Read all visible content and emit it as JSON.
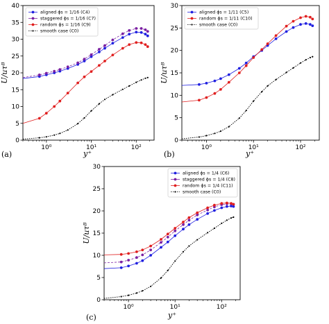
{
  "chart_data": [
    {
      "type": "line",
      "panel_label": "(a)",
      "xlabel": "y⁺",
      "ylabel": "U/uτᴮ",
      "xscale": "log",
      "xlim": [
        0.3,
        250
      ],
      "ylim": [
        0,
        40
      ],
      "xticks": [
        {
          "v": 1,
          "label": "10⁰"
        },
        {
          "v": 10,
          "label": "10¹"
        },
        {
          "v": 100,
          "label": "10²"
        }
      ],
      "yticks": [
        0,
        5,
        10,
        15,
        20,
        25,
        30,
        35,
        40
      ],
      "legend_position": "top-left",
      "series": [
        {
          "name": "aligned ϕs = 1/16 (C4)",
          "color": "#1f1fe0",
          "marker": "circle",
          "x": [
            0.3,
            0.7,
            1.0,
            1.5,
            2.0,
            3.0,
            5.0,
            7.0,
            10,
            15,
            20,
            30,
            50,
            70,
            100,
            130,
            160,
            180
          ],
          "y": [
            18.3,
            18.9,
            19.4,
            20.0,
            20.5,
            21.3,
            22.5,
            23.5,
            24.8,
            26.2,
            27.3,
            28.8,
            30.5,
            31.5,
            32.1,
            32.0,
            31.5,
            31.0
          ]
        },
        {
          "name": "staggered ϕs = 1/16 (C7)",
          "color": "#7a1fa2",
          "marker": "circle",
          "x": [
            0.3,
            0.7,
            1.0,
            1.5,
            2.0,
            3.0,
            5.0,
            7.0,
            10,
            15,
            20,
            30,
            50,
            70,
            100,
            130,
            160,
            180
          ],
          "y": [
            18.6,
            19.4,
            19.9,
            20.5,
            21.0,
            21.8,
            23.0,
            24.1,
            25.4,
            27.0,
            28.1,
            29.8,
            31.6,
            32.6,
            33.2,
            33.2,
            32.8,
            32.3
          ]
        },
        {
          "name": "random ϕs = 1/16 (C9)",
          "color": "#e01f1f",
          "marker": "circle",
          "x": [
            0.3,
            0.7,
            1.0,
            1.5,
            2.0,
            3.0,
            5.0,
            7.0,
            10,
            15,
            20,
            30,
            50,
            70,
            100,
            130,
            160,
            180
          ],
          "y": [
            5.0,
            6.5,
            8.0,
            10.0,
            11.6,
            14.0,
            17.0,
            18.8,
            20.4,
            22.2,
            23.5,
            25.3,
            27.3,
            28.4,
            29.0,
            28.9,
            28.4,
            27.8
          ]
        },
        {
          "name": "smooth case (C0)",
          "color": "#000000",
          "marker": "dot",
          "x": [
            0.3,
            0.7,
            1.0,
            1.5,
            2.0,
            3.0,
            5.0,
            7.0,
            10,
            15,
            20,
            30,
            50,
            70,
            100,
            130,
            160,
            180
          ],
          "y": [
            0.3,
            0.7,
            1.0,
            1.5,
            2.0,
            3.0,
            4.9,
            6.6,
            8.7,
            10.8,
            12.1,
            13.5,
            15.1,
            16.1,
            17.2,
            17.9,
            18.4,
            18.6
          ]
        }
      ]
    },
    {
      "type": "line",
      "panel_label": "(b)",
      "xlabel": "y⁺",
      "ylabel": "U/uτᴮ",
      "xscale": "log",
      "xlim": [
        0.3,
        250
      ],
      "ylim": [
        0,
        30
      ],
      "xticks": [
        {
          "v": 1,
          "label": "10⁰"
        },
        {
          "v": 10,
          "label": "10¹"
        },
        {
          "v": 100,
          "label": "10²"
        }
      ],
      "yticks": [
        0,
        5,
        10,
        15,
        20,
        25,
        30
      ],
      "legend_position": "top-left",
      "series": [
        {
          "name": "aligned ϕs = 1/11 (C5)",
          "color": "#1f1fe0",
          "marker": "circle",
          "x": [
            0.3,
            0.7,
            1.0,
            1.5,
            2.0,
            3.0,
            5.0,
            7.0,
            10,
            15,
            20,
            30,
            50,
            70,
            100,
            130,
            160,
            180
          ],
          "y": [
            12.2,
            12.4,
            12.7,
            13.2,
            13.7,
            14.6,
            16.0,
            17.2,
            18.6,
            20.0,
            21.1,
            22.6,
            24.2,
            25.1,
            25.8,
            26.0,
            25.8,
            25.5
          ]
        },
        {
          "name": "random ϕs = 1/11 (C10)",
          "color": "#e01f1f",
          "marker": "circle",
          "x": [
            0.3,
            0.7,
            1.0,
            1.5,
            2.0,
            3.0,
            5.0,
            7.0,
            10,
            15,
            20,
            30,
            50,
            70,
            100,
            130,
            160,
            180
          ],
          "y": [
            8.5,
            8.9,
            9.5,
            10.4,
            11.3,
            12.9,
            15.0,
            16.6,
            18.4,
            20.2,
            21.5,
            23.3,
            25.4,
            26.5,
            27.3,
            27.6,
            27.4,
            27.0
          ]
        },
        {
          "name": "smooth case (C0)",
          "color": "#000000",
          "marker": "dot",
          "x": [
            0.3,
            0.7,
            1.0,
            1.5,
            2.0,
            3.0,
            5.0,
            7.0,
            10,
            15,
            20,
            30,
            50,
            70,
            100,
            130,
            160,
            180
          ],
          "y": [
            0.3,
            0.7,
            1.0,
            1.5,
            2.0,
            3.0,
            4.9,
            6.6,
            8.7,
            10.8,
            12.1,
            13.5,
            15.1,
            16.1,
            17.2,
            17.9,
            18.4,
            18.6
          ]
        }
      ]
    },
    {
      "type": "line",
      "panel_label": "(c)",
      "xlabel": "y⁺",
      "ylabel": "U/uτᴮ",
      "xscale": "log",
      "xlim": [
        0.3,
        250
      ],
      "ylim": [
        0,
        30
      ],
      "xticks": [
        {
          "v": 1,
          "label": "10⁰"
        },
        {
          "v": 10,
          "label": "10¹"
        },
        {
          "v": 100,
          "label": "10²"
        }
      ],
      "yticks": [
        0,
        5,
        10,
        15,
        20,
        25,
        30
      ],
      "legend_position": "top-right",
      "series": [
        {
          "name": "aligned ϕs = 1/4 (C6)",
          "color": "#1f1fe0",
          "marker": "circle",
          "x": [
            0.3,
            0.7,
            1.0,
            1.5,
            2.0,
            3.0,
            5.0,
            7.0,
            10,
            15,
            20,
            30,
            50,
            70,
            100,
            130,
            160,
            180
          ],
          "y": [
            7.0,
            7.2,
            7.6,
            8.2,
            8.8,
            10.0,
            11.8,
            13.0,
            14.4,
            15.9,
            16.9,
            18.1,
            19.4,
            20.1,
            20.7,
            21.0,
            21.1,
            21.0
          ]
        },
        {
          "name": "staggered ϕs = 1/4 (C8)",
          "color": "#7a1fa2",
          "marker": "circle",
          "x": [
            0.3,
            0.7,
            1.0,
            1.5,
            2.0,
            3.0,
            5.0,
            7.0,
            10,
            15,
            20,
            30,
            50,
            70,
            100,
            130,
            160,
            180
          ],
          "y": [
            8.3,
            8.5,
            8.9,
            9.5,
            10.1,
            11.2,
            12.9,
            14.1,
            15.5,
            16.9,
            17.9,
            19.1,
            20.2,
            20.9,
            21.4,
            21.6,
            21.6,
            21.5
          ]
        },
        {
          "name": "random ϕs = 1/4 (C11)",
          "color": "#e01f1f",
          "marker": "circle",
          "x": [
            0.3,
            0.7,
            1.0,
            1.5,
            2.0,
            3.0,
            5.0,
            7.0,
            10,
            15,
            20,
            30,
            50,
            70,
            100,
            130,
            160,
            180
          ],
          "y": [
            10.1,
            10.2,
            10.4,
            10.8,
            11.2,
            12.1,
            13.6,
            14.8,
            16.1,
            17.5,
            18.5,
            19.6,
            20.7,
            21.3,
            21.7,
            21.8,
            21.7,
            21.5
          ]
        },
        {
          "name": "smooth case (C0)",
          "color": "#000000",
          "marker": "dot",
          "x": [
            0.3,
            0.7,
            1.0,
            1.5,
            2.0,
            3.0,
            5.0,
            7.0,
            10,
            15,
            20,
            30,
            50,
            70,
            100,
            130,
            160,
            180
          ],
          "y": [
            0.3,
            0.7,
            1.0,
            1.5,
            2.0,
            3.0,
            4.9,
            6.6,
            8.7,
            10.8,
            12.1,
            13.5,
            15.1,
            16.1,
            17.2,
            17.9,
            18.4,
            18.6
          ]
        }
      ]
    }
  ]
}
